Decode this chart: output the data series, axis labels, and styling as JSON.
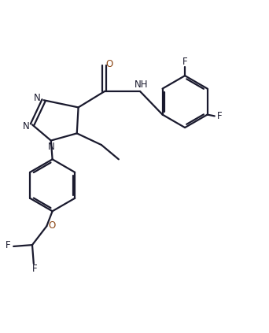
{
  "bg_color": "#ffffff",
  "line_color": "#1a1a2e",
  "lw": 1.6,
  "figsize": [
    3.42,
    4.23
  ],
  "dpi": 100,
  "xlim": [
    0.2,
    9.5
  ],
  "ylim": [
    0.5,
    11.0
  ]
}
